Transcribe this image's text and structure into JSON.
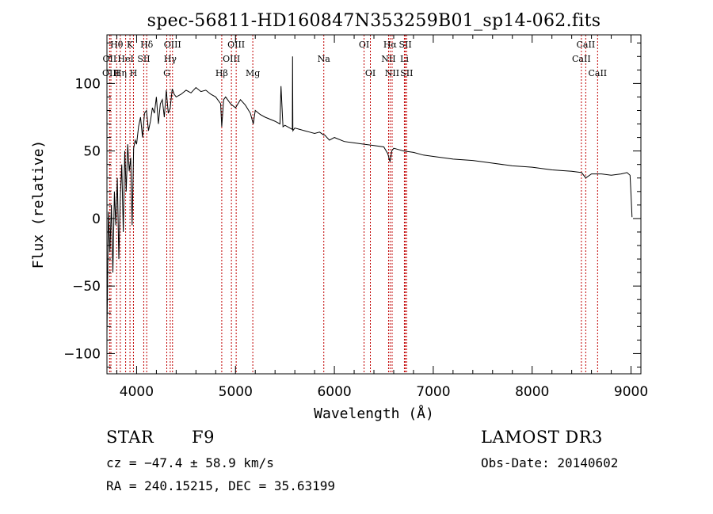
{
  "chart_data": {
    "type": "line",
    "title": "spec-56811-HD160847N353259B01_sp14-062.fits",
    "xlabel": "Wavelength (Å)",
    "ylabel": "Flux (relative)",
    "xlim": [
      3700,
      9100
    ],
    "ylim": [
      -115,
      136
    ],
    "xticks": [
      4000,
      5000,
      6000,
      7000,
      8000,
      9000
    ],
    "yticks": [
      -100,
      -50,
      0,
      50,
      100
    ],
    "series": [
      {
        "name": "flux",
        "x": [
          3700,
          3715,
          3730,
          3745,
          3760,
          3775,
          3790,
          3805,
          3820,
          3835,
          3850,
          3865,
          3880,
          3895,
          3910,
          3925,
          3940,
          3955,
          3970,
          3985,
          4000,
          4020,
          4040,
          4060,
          4080,
          4100,
          4120,
          4140,
          4160,
          4180,
          4200,
          4220,
          4240,
          4260,
          4280,
          4300,
          4320,
          4340,
          4360,
          4380,
          4400,
          4450,
          4500,
          4550,
          4600,
          4650,
          4700,
          4750,
          4800,
          4850,
          4861,
          4880,
          4900,
          4950,
          5000,
          5050,
          5100,
          5150,
          5180,
          5200,
          5250,
          5300,
          5400,
          5450,
          5460,
          5480,
          5500,
          5550,
          5575,
          5577,
          5580,
          5600,
          5650,
          5700,
          5750,
          5800,
          5850,
          5890,
          5900,
          5950,
          6000,
          6100,
          6200,
          6300,
          6400,
          6500,
          6540,
          6563,
          6580,
          6600,
          6700,
          6800,
          6900,
          7000,
          7200,
          7400,
          7600,
          7800,
          8000,
          8200,
          8400,
          8500,
          8542,
          8600,
          8700,
          8800,
          8900,
          8960,
          8990,
          9000,
          9010
        ],
        "y": [
          -85,
          5,
          -25,
          10,
          -40,
          20,
          -5,
          30,
          -30,
          15,
          40,
          -10,
          50,
          20,
          55,
          35,
          45,
          -5,
          52,
          58,
          55,
          68,
          75,
          60,
          78,
          80,
          65,
          72,
          82,
          78,
          90,
          70,
          85,
          88,
          75,
          95,
          78,
          82,
          96,
          92,
          90,
          92,
          95,
          93,
          97,
          94,
          95,
          92,
          90,
          85,
          68,
          88,
          90,
          85,
          82,
          88,
          84,
          78,
          70,
          80,
          77,
          75,
          72,
          70,
          98,
          68,
          69,
          67,
          66,
          120,
          65,
          67,
          66,
          65,
          64,
          63,
          64,
          62,
          62,
          58,
          60,
          57,
          56,
          55,
          54,
          53,
          48,
          42,
          50,
          52,
          50,
          49,
          47,
          46,
          44,
          43,
          41,
          39,
          38,
          36,
          35,
          34,
          30,
          33,
          33,
          32,
          33,
          34,
          32,
          18,
          1
        ],
        "color": "#000000"
      }
    ],
    "line_annotations": [
      {
        "label": "Hθ",
        "wl": 3798,
        "row": 1
      },
      {
        "label": "OII",
        "wl": 3727,
        "row": 2
      },
      {
        "label": "OIII",
        "wl": 3740,
        "row": 3
      },
      {
        "label": "Hη",
        "wl": 3835,
        "row": 3
      },
      {
        "label": "K",
        "wl": 3933,
        "row": 1
      },
      {
        "label": "HeI",
        "wl": 3889,
        "row": 2
      },
      {
        "label": "SII",
        "wl": 4072,
        "row": 2
      },
      {
        "label": "H",
        "wl": 3968,
        "row": 3
      },
      {
        "label": "Hδ",
        "wl": 4102,
        "row": 1
      },
      {
        "label": "OIII",
        "wl": 4363,
        "row": 1
      },
      {
        "label": "Hγ",
        "wl": 4340,
        "row": 2
      },
      {
        "label": "G",
        "wl": 4305,
        "row": 3
      },
      {
        "label": "OIII",
        "wl": 5007,
        "row": 1
      },
      {
        "label": "OIII",
        "wl": 4959,
        "row": 2
      },
      {
        "label": "Hβ",
        "wl": 4861,
        "row": 3
      },
      {
        "label": "Mg",
        "wl": 5175,
        "row": 3
      },
      {
        "label": "Na",
        "wl": 5893,
        "row": 2
      },
      {
        "label": "OI",
        "wl": 6300,
        "row": 1
      },
      {
        "label": "OI",
        "wl": 6364,
        "row": 3
      },
      {
        "label": "Hα",
        "wl": 6563,
        "row": 1
      },
      {
        "label": "NII",
        "wl": 6548,
        "row": 2
      },
      {
        "label": "NII",
        "wl": 6584,
        "row": 3
      },
      {
        "label": "SII",
        "wl": 6717,
        "row": 1
      },
      {
        "label": "Li",
        "wl": 6708,
        "row": 2
      },
      {
        "label": "SII",
        "wl": 6731,
        "row": 3
      },
      {
        "label": "CaII",
        "wl": 8542,
        "row": 1
      },
      {
        "label": "CaII",
        "wl": 8498,
        "row": 2
      },
      {
        "label": "CaII",
        "wl": 8662,
        "row": 3
      }
    ],
    "annotation_line_color": "#c00000"
  },
  "info": {
    "object_class": "STAR",
    "subclass": "F9",
    "survey": "LAMOST DR3",
    "cz_text": "cz = −47.4 ± 58.9 km/s",
    "obs_date": "Obs-Date: 20140602",
    "coords": "RA = 240.15215, DEC =  35.63199"
  }
}
